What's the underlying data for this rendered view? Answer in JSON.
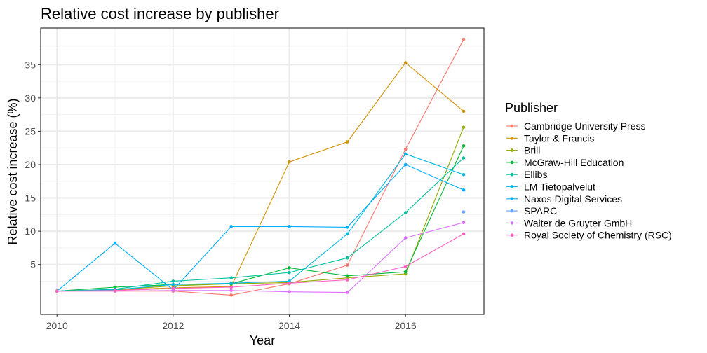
{
  "chart_data": {
    "type": "line",
    "title": "Relative cost increase by publisher",
    "xlabel": "Year",
    "ylabel": "Relative cost increase (%)",
    "xlim": [
      2009.72,
      2017.35
    ],
    "ylim": [
      -2.5,
      40.5
    ],
    "x_ticks": [
      2010,
      2012,
      2014,
      2016
    ],
    "y_ticks": [
      5,
      10,
      15,
      20,
      25,
      30,
      35
    ],
    "grid": true,
    "legend_title": "Publisher",
    "legend_position": "right",
    "series": [
      {
        "name": "Cambridge University Press",
        "color": "#F8766D",
        "x": [
          2010,
          2011,
          2012,
          2013,
          2014,
          2015,
          2016,
          2017
        ],
        "y": [
          1.0,
          1.0,
          1.0,
          0.4,
          2.1,
          4.9,
          22.3,
          38.8
        ]
      },
      {
        "name": "Taylor & Francis",
        "color": "#D39200",
        "x": [
          2010,
          2011,
          2012,
          2013,
          2014,
          2015,
          2016,
          2017
        ],
        "y": [
          1.0,
          1.2,
          1.5,
          1.7,
          20.4,
          23.4,
          35.3,
          28.0
        ]
      },
      {
        "name": "Brill",
        "color": "#93AA00",
        "x": [
          2010,
          2011,
          2012,
          2013,
          2014,
          2015,
          2016,
          2017
        ],
        "y": [
          1.0,
          1.2,
          1.8,
          2.1,
          2.3,
          3.0,
          3.6,
          25.6
        ]
      },
      {
        "name": "McGraw-Hill Education",
        "color": "#00BA38",
        "x": [
          2010,
          2011,
          2012,
          2013,
          2014,
          2015,
          2016,
          2017
        ],
        "y": [
          1.0,
          1.6,
          2.0,
          2.1,
          4.5,
          3.3,
          3.9,
          22.8
        ]
      },
      {
        "name": "Ellibs",
        "color": "#00C19F",
        "x": [
          2010,
          2011,
          2012,
          2013,
          2014,
          2015,
          2016,
          2017
        ],
        "y": [
          1.0,
          1.3,
          2.5,
          3.0,
          3.8,
          6.0,
          12.8,
          21.0
        ]
      },
      {
        "name": "LM Tietopalvelut",
        "color": "#00B9E3",
        "x": [
          2010,
          2011,
          2012,
          2013,
          2014,
          2015,
          2016,
          2017
        ],
        "y": [
          1.0,
          1.2,
          2.0,
          2.2,
          2.5,
          9.6,
          21.6,
          18.5
        ]
      },
      {
        "name": "Naxos Digital Services",
        "color": "#00ADFA",
        "x": [
          2010,
          2011,
          2012,
          2013,
          2014,
          2015,
          2016,
          2017
        ],
        "y": [
          1.0,
          8.2,
          1.2,
          10.7,
          10.7,
          10.6,
          20.0,
          16.2
        ]
      },
      {
        "name": "SPARC",
        "color": "#619CFF",
        "x": [
          2017
        ],
        "y": [
          12.9
        ]
      },
      {
        "name": "Walter de Gruyter GmbH",
        "color": "#DB72FB",
        "x": [
          2010,
          2011,
          2012,
          2013,
          2014,
          2015,
          2016,
          2017
        ],
        "y": [
          1.0,
          1.0,
          1.1,
          1.1,
          0.9,
          0.8,
          9.0,
          11.3
        ]
      },
      {
        "name": "Royal Society of Chemistry (RSC)",
        "color": "#FF61C3",
        "x": [
          2010,
          2011,
          2012,
          2013,
          2014,
          2015,
          2016,
          2017
        ],
        "y": [
          1.0,
          1.1,
          1.4,
          1.6,
          2.2,
          2.7,
          4.7,
          9.6
        ]
      }
    ]
  }
}
